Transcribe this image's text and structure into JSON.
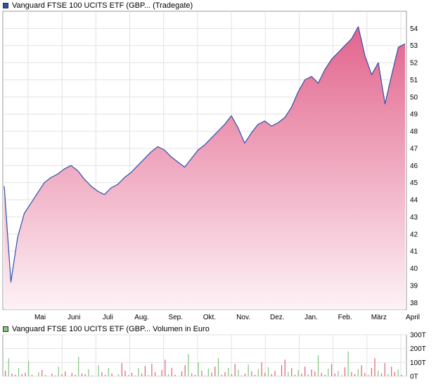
{
  "chart_data": [
    {
      "type": "area",
      "legend_label": "Vanguard FTSE 100 UCITS ETF (GBP... (Tradegate)",
      "series_color": "#3050a8",
      "fill_top_color": "#e2648c",
      "fill_bottom_color": "#fdf2f6",
      "ylim": [
        37.6,
        55
      ],
      "y_ticks": [
        38,
        39,
        40,
        41,
        42,
        43,
        44,
        45,
        46,
        47,
        48,
        49,
        50,
        51,
        52,
        53,
        54
      ],
      "x_ticks": [
        "Mai",
        "Juni",
        "Juli",
        "Aug.",
        "Sep.",
        "Okt.",
        "Nov.",
        "Dez.",
        "Jan.",
        "Feb.",
        "März",
        "April"
      ],
      "grid": true,
      "x": [
        0,
        1,
        2,
        3,
        4,
        5,
        6,
        7,
        8,
        9,
        10,
        11,
        12,
        13,
        14,
        15,
        16,
        17,
        18,
        19,
        20,
        21,
        22,
        23,
        24,
        25,
        26,
        27,
        28,
        29,
        30,
        31,
        32,
        33,
        34,
        35,
        36,
        37,
        38,
        39,
        40,
        41,
        42,
        43,
        44,
        45,
        46,
        47,
        48,
        49,
        50,
        51,
        52,
        53,
        54,
        55,
        56,
        57,
        58,
        59,
        60
      ],
      "values": [
        44.8,
        39.2,
        41.8,
        43.2,
        43.8,
        44.4,
        45.0,
        45.3,
        45.5,
        45.8,
        46.0,
        45.7,
        45.2,
        44.8,
        44.5,
        44.3,
        44.7,
        44.9,
        45.3,
        45.6,
        46.0,
        46.4,
        46.8,
        47.1,
        46.9,
        46.5,
        46.2,
        45.9,
        46.4,
        46.9,
        47.2,
        47.6,
        48.0,
        48.4,
        48.9,
        48.2,
        47.3,
        47.9,
        48.4,
        48.6,
        48.3,
        48.5,
        48.8,
        49.4,
        50.3,
        51.0,
        51.2,
        50.8,
        51.6,
        52.2,
        52.6,
        53.0,
        53.4,
        54.1,
        52.4,
        51.3,
        52.0,
        49.6,
        51.3,
        52.9,
        53.1
      ]
    },
    {
      "type": "bar",
      "legend_label": "Vanguard FTSE 100 UCITS ETF (GBP... Volumen in Euro",
      "series_color": "#e06070",
      "series_color_alt": "#7ec87e",
      "ylim": [
        0,
        300
      ],
      "y_ticks": [
        "0T",
        "100T",
        "200T",
        "300T"
      ],
      "values": [
        40,
        130,
        20,
        10,
        60,
        15,
        25,
        110,
        10,
        0,
        30,
        45,
        8,
        0,
        20,
        5,
        70,
        15,
        35,
        0,
        25,
        10,
        140,
        20,
        15,
        50,
        5,
        0,
        80,
        30,
        10,
        60,
        20,
        0,
        15,
        95,
        40,
        10,
        25,
        5,
        60,
        20,
        75,
        10,
        90,
        30,
        5,
        45,
        120,
        15,
        60,
        10,
        0,
        35,
        80,
        160,
        20,
        10,
        100,
        40,
        5,
        55,
        25,
        70,
        130,
        10,
        30,
        60,
        15,
        90,
        45,
        5,
        20,
        85,
        35,
        10,
        50,
        100,
        25,
        65,
        15,
        40,
        5,
        80,
        120,
        30,
        60,
        10,
        45,
        20,
        70,
        15,
        50,
        35,
        150,
        25,
        10,
        55,
        90,
        20,
        40,
        5,
        65,
        180,
        30,
        15,
        50,
        80,
        25,
        10,
        60,
        130,
        40,
        20,
        95,
        15,
        70,
        30,
        50,
        10
      ]
    }
  ]
}
